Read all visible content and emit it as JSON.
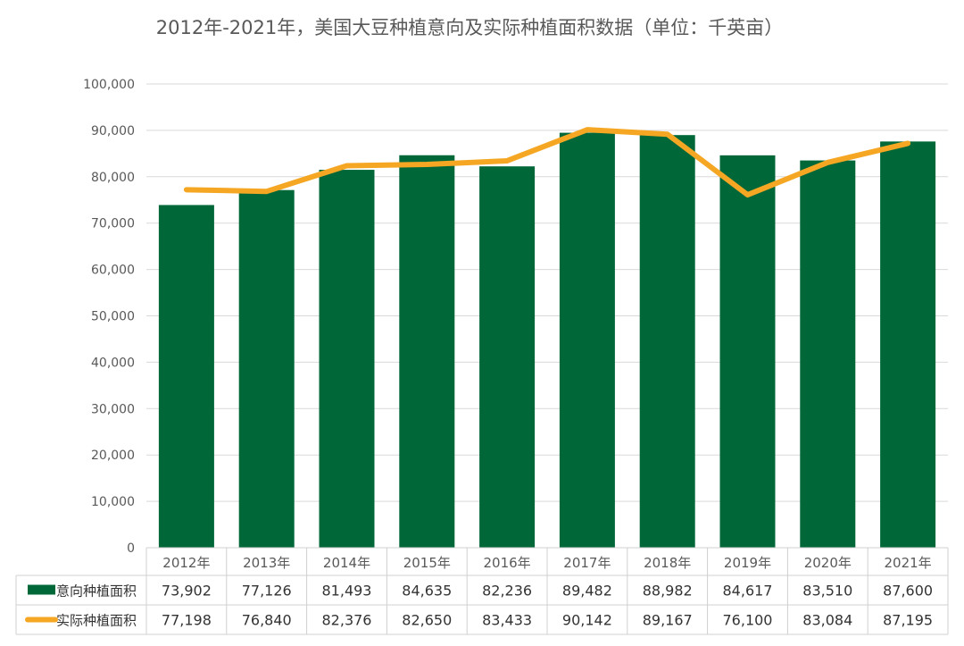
{
  "chart_data": {
    "type": "bar",
    "title": "2012年-2021年，美国大豆种植意向及实际种植面积数据（单位：千英亩）",
    "categories": [
      "2012年",
      "2013年",
      "2014年",
      "2015年",
      "2016年",
      "2017年",
      "2018年",
      "2019年",
      "2020年",
      "2021年"
    ],
    "series": [
      {
        "name": "意向种植面积",
        "type": "bar",
        "color": "#006838",
        "values": [
          73902,
          77126,
          81493,
          84635,
          82236,
          89482,
          88982,
          84617,
          83510,
          87600
        ],
        "labels": [
          "73,902",
          "77,126",
          "81,493",
          "84,635",
          "82,236",
          "89,482",
          "88,982",
          "84,617",
          "83,510",
          "87,600"
        ]
      },
      {
        "name": "实际种植面积",
        "type": "line",
        "color": "#F5A623",
        "values": [
          77198,
          76840,
          82376,
          82650,
          83433,
          90142,
          89167,
          76100,
          83084,
          87195
        ],
        "labels": [
          "77,198",
          "76,840",
          "82,376",
          "82,650",
          "83,433",
          "90,142",
          "89,167",
          "76,100",
          "83,084",
          "87,195"
        ]
      }
    ],
    "ylim": [
      0,
      100000
    ],
    "yticks": [
      "0",
      "10,000",
      "20,000",
      "30,000",
      "40,000",
      "50,000",
      "60,000",
      "70,000",
      "80,000",
      "90,000",
      "100,000"
    ],
    "grid": true,
    "legend": "data-table"
  }
}
